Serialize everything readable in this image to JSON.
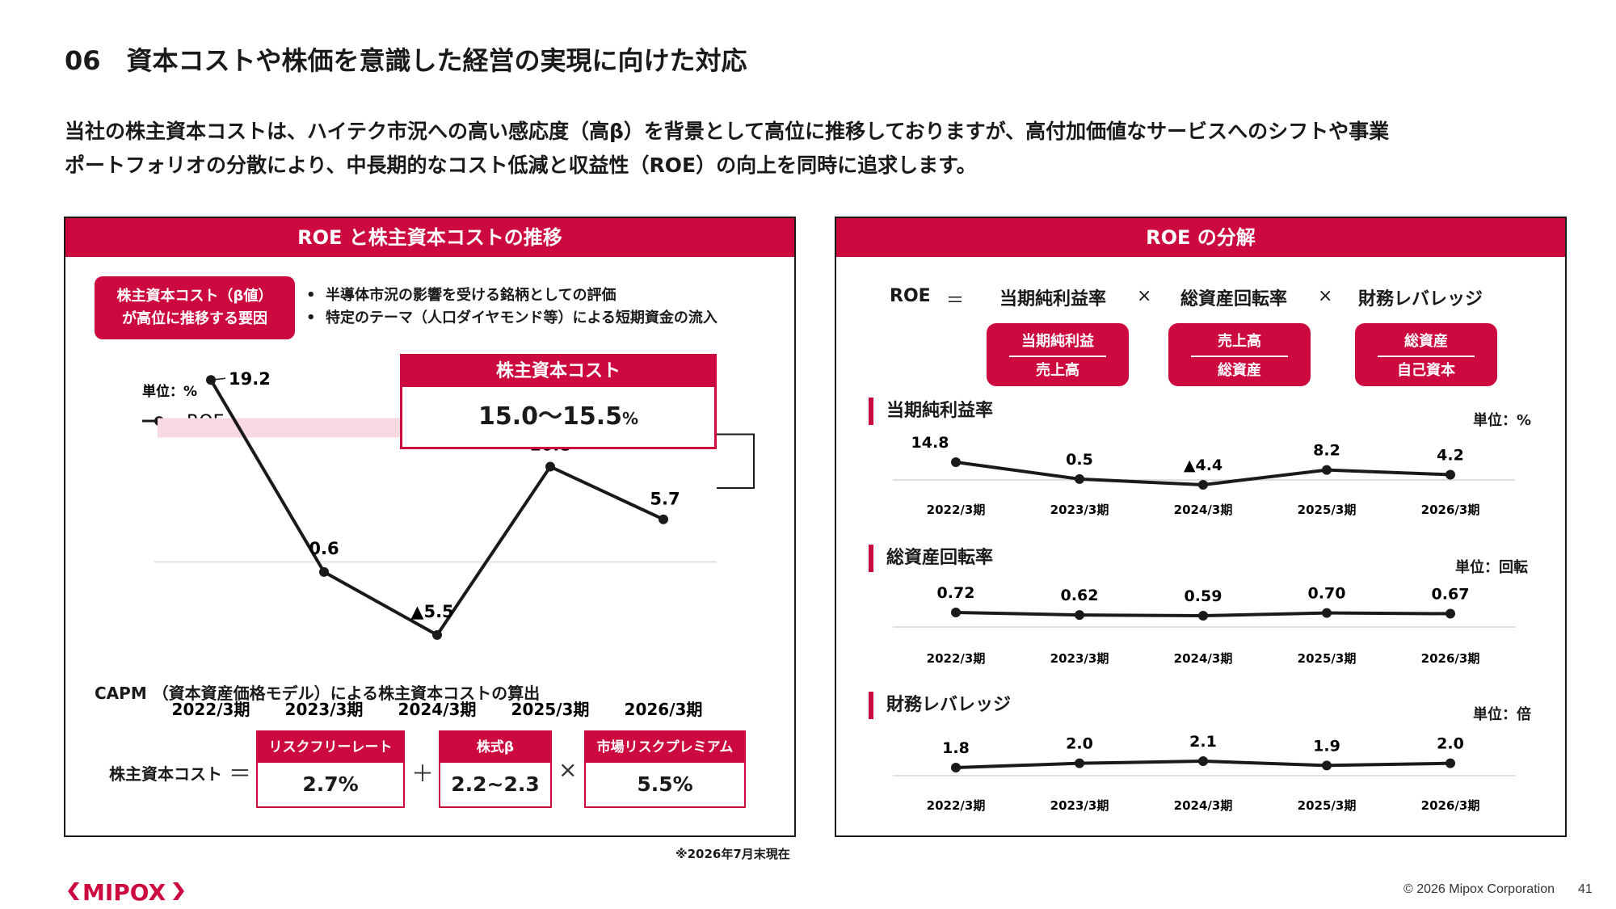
{
  "page_title": "06　資本コストや株価を意識した経営の実現に向けた対応",
  "intro_lines": [
    "当社の株主資本コストは、ハイテク市況への高い感応度（高β）を背景として高位に推移しておりますが、高付加価値なサービスへのシフトや事業",
    "ポートフォリオの分散により、中長期的なコスト低減と収益性（ROE）の向上を同時に追求します。"
  ],
  "colors": {
    "accent": "#cc0a3f",
    "band": "#f9d9e1",
    "line": "#1a1a1a"
  },
  "left_panel": {
    "title": "ROE と株主資本コストの推移",
    "factor_label_line1": "株主資本コスト（β値）",
    "factor_label_line2": "が高位に推移する要因",
    "bullets": [
      "半導体市況の影響を受ける銘柄としての評価",
      "特定のテーマ（人口ダイヤモンド等）による短期資金の流入"
    ],
    "unit_label": "単位：%",
    "legend_label": "ROE",
    "cost_box_title": "株主資本コスト",
    "cost_box_value": "15.0〜15.5",
    "cost_box_unit": "%",
    "capm_title": "CAPM （資本資産価格モデル）による株主資本コストの算出",
    "capm_lhs": "株主資本コスト",
    "capm_eq": "＝",
    "capm_plus": "＋",
    "capm_times": "×",
    "capm_terms": [
      {
        "label": "リスクフリーレート",
        "value": "2.7%"
      },
      {
        "label": "株式β",
        "value": "2.2~2.3"
      },
      {
        "label": "市場リスクプレミアム",
        "value": "5.5%"
      }
    ],
    "footnote": "※2026年7月末現在"
  },
  "right_panel": {
    "title": "ROE の分解",
    "formula": {
      "roe": "ROE",
      "eq": "＝",
      "times": "×",
      "terms": [
        "当期純利益率",
        "総資産回転率",
        "財務レバレッジ"
      ],
      "fractions": [
        {
          "num": "当期純利益",
          "den": "売上高"
        },
        {
          "num": "売上高",
          "den": "総資産"
        },
        {
          "num": "総資産",
          "den": "自己資本"
        }
      ]
    },
    "sections": [
      {
        "title": "当期純利益率",
        "unit": "単位：%"
      },
      {
        "title": "総資産回転率",
        "unit": "単位：回転"
      },
      {
        "title": "財務レバレッジ",
        "unit": "単位：倍"
      }
    ]
  },
  "chart_data": [
    {
      "type": "line",
      "categories": [
        "2022/3期",
        "2023/3期",
        "2024/3期",
        "2025/3期",
        "2026/3期"
      ],
      "series": [
        {
          "name": "ROE",
          "values": [
            19.2,
            0.6,
            -5.5,
            10.8,
            5.7
          ]
        }
      ],
      "value_labels": [
        "19.2",
        "0.6",
        "▲5.5",
        "10.8",
        "5.7"
      ],
      "band": [
        15.0,
        15.5
      ],
      "ylabel": "単位：%"
    },
    {
      "type": "line",
      "categories": [
        "2022/3期",
        "2023/3期",
        "2024/3期",
        "2025/3期",
        "2026/3期"
      ],
      "series": [
        {
          "values": [
            14.8,
            0.5,
            -4.4,
            8.2,
            4.2
          ]
        }
      ],
      "value_labels": [
        "14.8",
        "0.5",
        "▲4.4",
        "8.2",
        "4.2"
      ]
    },
    {
      "type": "line",
      "categories": [
        "2022/3期",
        "2023/3期",
        "2024/3期",
        "2025/3期",
        "2026/3期"
      ],
      "series": [
        {
          "values": [
            0.72,
            0.62,
            0.59,
            0.7,
            0.67
          ]
        }
      ],
      "value_labels": [
        "0.72",
        "0.62",
        "0.59",
        "0.70",
        "0.67"
      ]
    },
    {
      "type": "line",
      "categories": [
        "2022/3期",
        "2023/3期",
        "2024/3期",
        "2025/3期",
        "2026/3期"
      ],
      "series": [
        {
          "values": [
            1.8,
            2.0,
            2.1,
            1.9,
            2.0
          ]
        }
      ],
      "value_labels": [
        "1.8",
        "2.0",
        "2.1",
        "1.9",
        "2.0"
      ]
    }
  ],
  "footer": {
    "logo_text": "MIPOX",
    "copyright": "© 2026 Mipox Corporation",
    "page_number": "41"
  }
}
